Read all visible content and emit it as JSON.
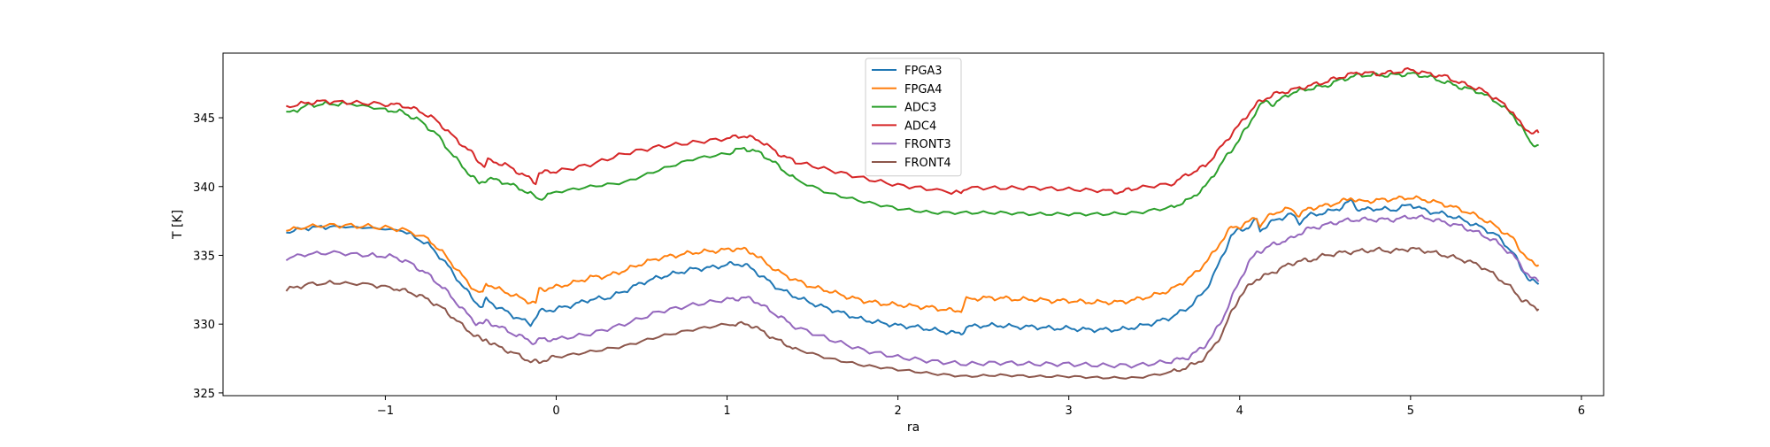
{
  "chart_data": {
    "type": "line",
    "title": "",
    "xlabel": "ra",
    "ylabel": "T [K]",
    "xlim": [
      -1.95,
      6.13
    ],
    "ylim": [
      324.8,
      349.7
    ],
    "xticks": [
      {
        "value": -1,
        "label": "−1"
      },
      {
        "value": 0,
        "label": "0"
      },
      {
        "value": 1,
        "label": "1"
      },
      {
        "value": 2,
        "label": "2"
      },
      {
        "value": 3,
        "label": "3"
      },
      {
        "value": 4,
        "label": "4"
      },
      {
        "value": 5,
        "label": "5"
      },
      {
        "value": 6,
        "label": "6"
      }
    ],
    "yticks": [
      {
        "value": 325,
        "label": "325"
      },
      {
        "value": 330,
        "label": "330"
      },
      {
        "value": 335,
        "label": "335"
      },
      {
        "value": 340,
        "label": "340"
      },
      {
        "value": 345,
        "label": "345"
      }
    ],
    "grid": false,
    "legend_position": "top-center",
    "series": [
      {
        "name": "FPGA3",
        "color": "#1f77b4",
        "x": [
          -1.58,
          -1.45,
          -1.3,
          -1.1,
          -0.9,
          -0.75,
          -0.65,
          -0.55,
          -0.47,
          -0.43,
          -0.41,
          -0.35,
          -0.25,
          -0.15,
          -0.12,
          -0.1,
          -0.05,
          0.0,
          0.1,
          0.2,
          0.3,
          0.4,
          0.5,
          0.6,
          0.7,
          0.8,
          0.9,
          1.0,
          1.05,
          1.1,
          1.15,
          1.2,
          1.3,
          1.4,
          1.5,
          1.6,
          1.7,
          1.8,
          1.9,
          2.0,
          2.1,
          2.2,
          2.3,
          2.37,
          2.4,
          2.5,
          2.6,
          2.7,
          2.8,
          2.9,
          3.0,
          3.1,
          3.2,
          3.3,
          3.4,
          3.5,
          3.6,
          3.7,
          3.75,
          3.8,
          3.85,
          3.9,
          3.95,
          4.0,
          4.05,
          4.1,
          4.12,
          4.15,
          4.2,
          4.3,
          4.35,
          4.4,
          4.5,
          4.6,
          4.65,
          4.7,
          4.8,
          4.9,
          5.0,
          5.1,
          5.2,
          5.3,
          5.4,
          5.5,
          5.6,
          5.65,
          5.7,
          5.75
        ],
        "y": [
          336.7,
          337.0,
          337.1,
          337.0,
          336.8,
          335.8,
          334.5,
          332.8,
          331.6,
          331.2,
          331.8,
          331.3,
          330.6,
          330.0,
          330.5,
          330.9,
          331.0,
          331.1,
          331.4,
          331.8,
          331.9,
          332.4,
          333.0,
          333.4,
          333.7,
          334.0,
          334.1,
          334.3,
          334.4,
          334.3,
          334.0,
          333.5,
          332.6,
          332.0,
          331.5,
          331.1,
          330.7,
          330.3,
          330.1,
          329.9,
          329.8,
          329.6,
          329.4,
          329.3,
          329.8,
          329.9,
          329.9,
          329.8,
          329.8,
          329.7,
          329.7,
          329.6,
          329.6,
          329.6,
          329.8,
          330.1,
          330.5,
          331.2,
          331.8,
          332.5,
          333.6,
          335.0,
          336.4,
          336.9,
          337.0,
          337.6,
          336.8,
          337.1,
          337.5,
          338.0,
          337.4,
          337.9,
          338.1,
          338.5,
          339.0,
          338.3,
          338.4,
          338.3,
          338.7,
          338.2,
          338.0,
          337.6,
          337.1,
          336.5,
          335.2,
          334.0,
          333.2,
          332.9
        ]
      },
      {
        "name": "FPGA4",
        "color": "#ff7f0e",
        "x": [
          -1.58,
          -1.45,
          -1.3,
          -1.1,
          -0.9,
          -0.75,
          -0.65,
          -0.55,
          -0.47,
          -0.43,
          -0.41,
          -0.35,
          -0.25,
          -0.15,
          -0.12,
          -0.1,
          -0.05,
          0.0,
          0.1,
          0.2,
          0.3,
          0.4,
          0.5,
          0.6,
          0.7,
          0.8,
          0.9,
          1.0,
          1.05,
          1.1,
          1.15,
          1.2,
          1.3,
          1.4,
          1.5,
          1.6,
          1.7,
          1.8,
          1.9,
          2.0,
          2.1,
          2.2,
          2.3,
          2.37,
          2.4,
          2.5,
          2.6,
          2.7,
          2.8,
          2.9,
          3.0,
          3.1,
          3.2,
          3.3,
          3.4,
          3.5,
          3.6,
          3.7,
          3.75,
          3.8,
          3.85,
          3.9,
          3.95,
          4.0,
          4.05,
          4.1,
          4.12,
          4.15,
          4.2,
          4.3,
          4.35,
          4.4,
          4.5,
          4.6,
          4.65,
          4.7,
          4.8,
          4.9,
          5.0,
          5.1,
          5.2,
          5.3,
          5.4,
          5.5,
          5.6,
          5.65,
          5.7,
          5.75
        ],
        "y": [
          336.8,
          337.1,
          337.2,
          337.1,
          336.9,
          336.2,
          335.0,
          333.5,
          332.4,
          332.2,
          333.0,
          332.6,
          332.1,
          331.6,
          331.5,
          332.5,
          332.6,
          332.7,
          333.0,
          333.4,
          333.5,
          333.9,
          334.4,
          334.8,
          335.0,
          335.2,
          335.3,
          335.4,
          335.5,
          335.4,
          335.2,
          334.7,
          333.8,
          333.2,
          332.7,
          332.4,
          332.0,
          331.7,
          331.5,
          331.4,
          331.3,
          331.2,
          331.0,
          331.0,
          331.8,
          331.9,
          331.9,
          331.8,
          331.8,
          331.7,
          331.7,
          331.6,
          331.6,
          331.6,
          331.8,
          332.1,
          332.5,
          333.3,
          333.8,
          334.5,
          335.2,
          336.2,
          337.0,
          337.1,
          337.4,
          337.8,
          337.1,
          337.6,
          338.1,
          338.4,
          337.9,
          338.4,
          338.6,
          338.9,
          339.2,
          338.9,
          339.0,
          339.1,
          339.2,
          339.0,
          338.7,
          338.3,
          337.8,
          337.1,
          336.2,
          335.3,
          334.5,
          334.3
        ]
      },
      {
        "name": "ADC3",
        "color": "#2ca02c",
        "x": [
          -1.58,
          -1.45,
          -1.35,
          -1.2,
          -1.0,
          -0.9,
          -0.8,
          -0.7,
          -0.6,
          -0.5,
          -0.45,
          -0.4,
          -0.3,
          -0.2,
          -0.1,
          0.0,
          0.2,
          0.4,
          0.6,
          0.8,
          1.0,
          1.1,
          1.2,
          1.3,
          1.4,
          1.6,
          1.8,
          2.0,
          2.2,
          2.4,
          2.6,
          2.8,
          3.0,
          3.2,
          3.4,
          3.6,
          3.7,
          3.8,
          3.9,
          3.95,
          4.0,
          4.05,
          4.1,
          4.15,
          4.2,
          4.3,
          4.4,
          4.5,
          4.6,
          4.7,
          4.8,
          4.9,
          5.0,
          5.1,
          5.2,
          5.3,
          5.4,
          5.5,
          5.6,
          5.65,
          5.7,
          5.75
        ],
        "y": [
          345.3,
          345.9,
          346.0,
          346.0,
          345.6,
          345.4,
          344.8,
          343.8,
          342.2,
          340.8,
          340.2,
          340.6,
          340.3,
          339.8,
          339.1,
          339.6,
          340.0,
          340.3,
          341.2,
          342.0,
          342.4,
          342.8,
          342.4,
          341.5,
          340.5,
          339.5,
          338.9,
          338.4,
          338.1,
          338.1,
          338.1,
          338.0,
          338.0,
          338.0,
          338.1,
          338.5,
          339.0,
          340.0,
          341.8,
          342.6,
          343.5,
          344.4,
          345.6,
          346.2,
          346.0,
          346.8,
          347.1,
          347.3,
          347.8,
          348.1,
          348.1,
          348.1,
          348.2,
          348.0,
          347.6,
          347.2,
          346.9,
          346.2,
          345.2,
          344.3,
          343.2,
          343.0
        ]
      },
      {
        "name": "ADC4",
        "color": "#d62728",
        "x": [
          -1.58,
          -1.45,
          -1.35,
          -1.2,
          -1.0,
          -0.9,
          -0.8,
          -0.7,
          -0.6,
          -0.5,
          -0.45,
          -0.42,
          -0.4,
          -0.3,
          -0.2,
          -0.12,
          -0.1,
          0.0,
          0.2,
          0.4,
          0.6,
          0.8,
          1.0,
          1.1,
          1.2,
          1.3,
          1.4,
          1.6,
          1.8,
          2.0,
          2.2,
          2.37,
          2.4,
          2.6,
          2.8,
          3.0,
          3.2,
          3.3,
          3.4,
          3.6,
          3.7,
          3.8,
          3.9,
          3.95,
          4.0,
          4.05,
          4.1,
          4.15,
          4.2,
          4.3,
          4.4,
          4.5,
          4.6,
          4.7,
          4.8,
          4.9,
          5.0,
          5.1,
          5.2,
          5.3,
          5.4,
          5.5,
          5.6,
          5.65,
          5.7,
          5.75
        ],
        "y": [
          345.8,
          346.1,
          346.2,
          346.1,
          346.0,
          345.9,
          345.5,
          344.8,
          343.6,
          342.5,
          341.8,
          341.5,
          341.9,
          341.6,
          340.9,
          340.3,
          341.0,
          341.1,
          341.6,
          342.4,
          342.9,
          343.2,
          343.5,
          343.7,
          343.3,
          342.4,
          341.8,
          341.2,
          340.6,
          340.1,
          339.8,
          339.5,
          339.9,
          339.9,
          339.9,
          339.8,
          339.7,
          339.6,
          339.9,
          340.2,
          340.9,
          341.5,
          343.0,
          343.8,
          344.5,
          345.3,
          346.0,
          346.4,
          346.7,
          347.0,
          347.3,
          347.6,
          348.0,
          348.3,
          348.2,
          348.3,
          348.5,
          348.2,
          348.0,
          347.5,
          347.1,
          346.4,
          345.4,
          344.4,
          344.0,
          343.9
        ]
      },
      {
        "name": "FRONT3",
        "color": "#9467bd",
        "x": [
          -1.58,
          -1.45,
          -1.3,
          -1.1,
          -0.95,
          -0.85,
          -0.75,
          -0.65,
          -0.55,
          -0.47,
          -0.43,
          -0.41,
          -0.35,
          -0.25,
          -0.15,
          -0.12,
          -0.1,
          0.0,
          0.2,
          0.4,
          0.6,
          0.8,
          1.0,
          1.1,
          1.15,
          1.2,
          1.3,
          1.4,
          1.6,
          1.8,
          2.0,
          2.2,
          2.4,
          2.6,
          2.8,
          3.0,
          3.2,
          3.4,
          3.6,
          3.7,
          3.75,
          3.8,
          3.85,
          3.9,
          3.95,
          4.0,
          4.05,
          4.1,
          4.15,
          4.2,
          4.3,
          4.35,
          4.4,
          4.5,
          4.6,
          4.7,
          4.8,
          4.9,
          5.0,
          5.1,
          5.2,
          5.3,
          5.4,
          5.5,
          5.6,
          5.65,
          5.7,
          5.75
        ],
        "y": [
          334.8,
          335.1,
          335.2,
          335.0,
          334.9,
          334.4,
          333.6,
          332.5,
          331.1,
          330.1,
          330.0,
          330.2,
          329.9,
          329.3,
          328.8,
          328.6,
          328.9,
          328.9,
          329.3,
          330.0,
          330.9,
          331.4,
          331.8,
          331.9,
          331.8,
          331.4,
          330.6,
          329.8,
          328.9,
          328.1,
          327.6,
          327.3,
          327.1,
          327.2,
          327.1,
          327.1,
          327.0,
          327.0,
          327.3,
          327.6,
          328.0,
          328.5,
          329.3,
          330.4,
          331.8,
          333.2,
          334.4,
          335.2,
          335.5,
          335.8,
          336.2,
          336.6,
          336.9,
          337.2,
          337.5,
          337.6,
          337.6,
          337.6,
          337.8,
          337.7,
          337.4,
          337.1,
          336.6,
          336.0,
          335.0,
          334.2,
          333.4,
          333.1
        ]
      },
      {
        "name": "FRONT4",
        "color": "#8c564b",
        "x": [
          -1.58,
          -1.45,
          -1.3,
          -1.1,
          -0.95,
          -0.85,
          -0.75,
          -0.65,
          -0.55,
          -0.47,
          -0.43,
          -0.41,
          -0.35,
          -0.25,
          -0.15,
          -0.1,
          -0.05,
          0.0,
          0.2,
          0.4,
          0.6,
          0.8,
          1.0,
          1.1,
          1.15,
          1.2,
          1.3,
          1.4,
          1.6,
          1.8,
          2.0,
          2.2,
          2.4,
          2.6,
          2.8,
          3.0,
          3.2,
          3.4,
          3.6,
          3.7,
          3.75,
          3.8,
          3.85,
          3.9,
          3.95,
          4.0,
          4.05,
          4.1,
          4.15,
          4.2,
          4.3,
          4.35,
          4.4,
          4.5,
          4.6,
          4.7,
          4.8,
          4.9,
          5.0,
          5.1,
          5.2,
          5.3,
          5.4,
          5.5,
          5.6,
          5.65,
          5.7,
          5.75
        ],
        "y": [
          332.5,
          332.9,
          333.0,
          332.9,
          332.6,
          332.3,
          331.8,
          331.0,
          329.9,
          329.1,
          328.8,
          328.9,
          328.4,
          327.9,
          327.3,
          327.2,
          327.5,
          327.6,
          328.0,
          328.4,
          329.1,
          329.6,
          330.0,
          330.0,
          329.9,
          329.5,
          328.8,
          328.2,
          327.5,
          327.0,
          326.7,
          326.4,
          326.2,
          326.3,
          326.2,
          326.2,
          326.1,
          326.1,
          326.5,
          326.9,
          327.2,
          327.6,
          328.4,
          329.4,
          330.8,
          332.0,
          332.7,
          333.3,
          333.5,
          333.8,
          334.4,
          334.6,
          334.6,
          335.0,
          335.2,
          335.3,
          335.4,
          335.3,
          335.5,
          335.3,
          335.0,
          334.7,
          334.3,
          333.5,
          332.5,
          331.8,
          331.4,
          331.1
        ]
      }
    ]
  }
}
